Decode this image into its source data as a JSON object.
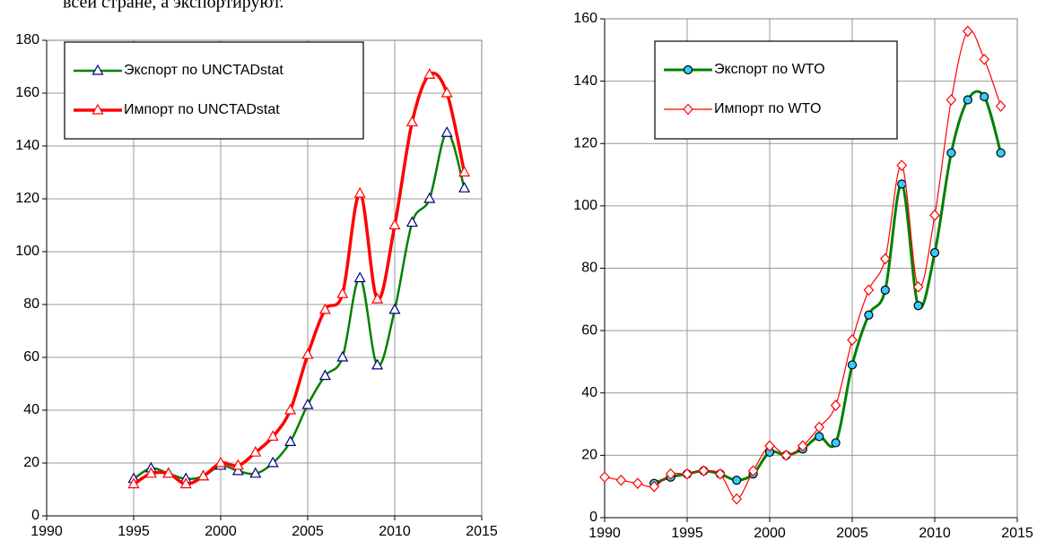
{
  "caption": "всей стране, а экспортируют.",
  "chart_data": [
    {
      "type": "line",
      "xlim": [
        1990,
        2015
      ],
      "xticks": [
        1990,
        1995,
        2000,
        2005,
        2010,
        2015
      ],
      "ylim": [
        0,
        180
      ],
      "yticks": [
        0,
        20,
        40,
        60,
        80,
        100,
        120,
        140,
        160,
        180
      ],
      "grid": true,
      "legend": "upper left",
      "series": [
        {
          "name": "Экспорт по UNCTADstat",
          "color": "#008000",
          "marker": "triangle",
          "marker_color": "#000080",
          "x": [
            1995,
            1996,
            1997,
            1998,
            1999,
            2000,
            2001,
            2002,
            2003,
            2004,
            2005,
            2006,
            2007,
            2008,
            2009,
            2010,
            2011,
            2012,
            2013,
            2014
          ],
          "values": [
            14,
            18,
            16,
            14,
            15,
            19,
            17,
            16,
            20,
            28,
            42,
            53,
            60,
            90,
            57,
            78,
            111,
            120,
            145,
            124
          ]
        },
        {
          "name": "Импорт по UNCTADstat",
          "color": "#ff0000",
          "marker": "triangle",
          "marker_color": "#ff0000",
          "x": [
            1995,
            1996,
            1997,
            1998,
            1999,
            2000,
            2001,
            2002,
            2003,
            2004,
            2005,
            2006,
            2007,
            2008,
            2009,
            2010,
            2011,
            2012,
            2013,
            2014
          ],
          "values": [
            12,
            16,
            16,
            12,
            15,
            20,
            19,
            24,
            30,
            40,
            61,
            78,
            84,
            122,
            82,
            110,
            149,
            167,
            160,
            130
          ]
        }
      ]
    },
    {
      "type": "line",
      "xlim": [
        1990,
        2015
      ],
      "xticks": [
        1990,
        1995,
        2000,
        2005,
        2010,
        2015
      ],
      "ylim": [
        0,
        160
      ],
      "yticks": [
        0,
        20,
        40,
        60,
        80,
        100,
        120,
        140,
        160
      ],
      "grid": true,
      "legend": "upper left",
      "series": [
        {
          "name": "Экспорт по WTO",
          "color": "#008000",
          "marker": "circle",
          "marker_color": "#33ccff",
          "x": [
            1993,
            1994,
            1995,
            1996,
            1997,
            1998,
            1999,
            2000,
            2001,
            2002,
            2003,
            2004,
            2005,
            2006,
            2007,
            2008,
            2009,
            2010,
            2011,
            2012,
            2013,
            2014
          ],
          "values": [
            11,
            13,
            14,
            15,
            14,
            12,
            14,
            21,
            20,
            22,
            26,
            24,
            49,
            65,
            73,
            107,
            68,
            85,
            117,
            134,
            135,
            117
          ]
        },
        {
          "name": "Импорт по WTO",
          "color": "#ff0000",
          "marker": "diamond",
          "marker_color": "#ff0000",
          "x": [
            1990,
            1991,
            1992,
            1993,
            1994,
            1995,
            1996,
            1997,
            1998,
            1999,
            2000,
            2001,
            2002,
            2003,
            2004,
            2005,
            2006,
            2007,
            2008,
            2009,
            2010,
            2011,
            2012,
            2013,
            2014
          ],
          "values": [
            13,
            12,
            11,
            10,
            14,
            14,
            15,
            14,
            6,
            15,
            23,
            20,
            23,
            29,
            36,
            57,
            73,
            83,
            113,
            74,
            97,
            134,
            156,
            147,
            132
          ]
        }
      ]
    }
  ]
}
